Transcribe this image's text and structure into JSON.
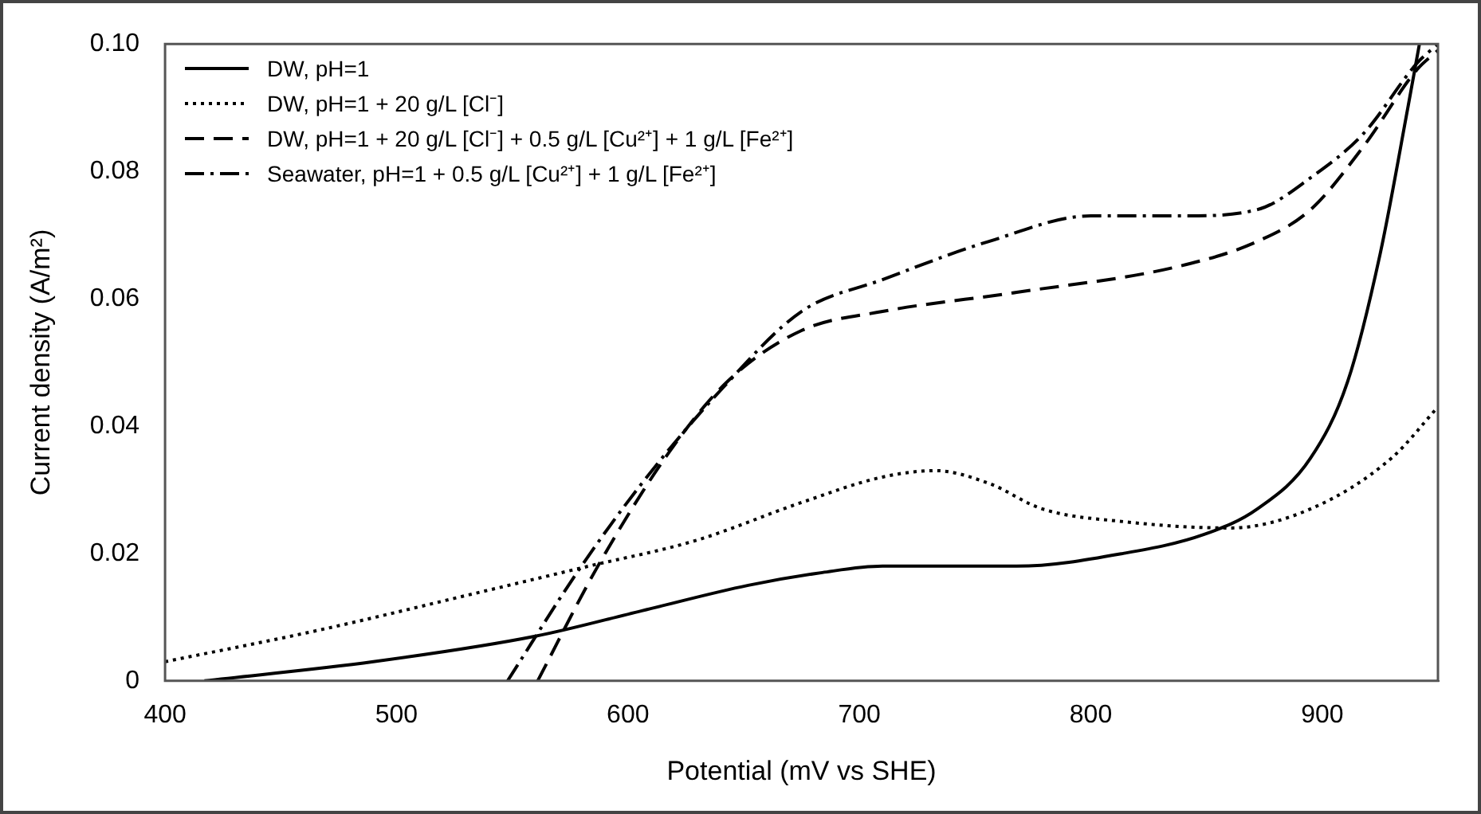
{
  "chart_data": {
    "type": "line",
    "xlabel": "Potential (mV vs SHE)",
    "ylabel": "Current density (A/m²)",
    "xlim": [
      400,
      950
    ],
    "xticks": [
      400,
      500,
      600,
      700,
      800,
      900
    ],
    "ylim": [
      0,
      0.1
    ],
    "yticks": [
      0,
      0.02,
      0.04,
      0.06,
      0.08,
      {
        "value": 0.1,
        "label": "0.10"
      }
    ],
    "grid": false,
    "legend": "top left",
    "marker": "none",
    "series": [
      {
        "name": "DW, pH=1",
        "color": "#000000",
        "line_style": "solid",
        "x": [
          417,
          490,
          560,
          606,
          652,
          684,
          710,
          768,
          814,
          849,
          872,
          895,
          911,
          925,
          937,
          942
        ],
        "values": [
          0,
          0.003,
          0.007,
          0.011,
          0.015,
          0.017,
          0.018,
          0.018,
          0.02,
          0.023,
          0.027,
          0.035,
          0.047,
          0.067,
          0.09,
          0.1
        ]
      },
      {
        "name": "DW, pH=1 + 20 g/L [Cl⁻]",
        "color": "#000000",
        "line_style": "dotted",
        "x": [
          400,
          467,
          537,
          583,
          629,
          675,
          710,
          733,
          756,
          779,
          814,
          860,
          895,
          930,
          950
        ],
        "values": [
          0.003,
          0.008,
          0.014,
          0.018,
          0.022,
          0.028,
          0.032,
          0.033,
          0.031,
          0.027,
          0.025,
          0.024,
          0.027,
          0.035,
          0.043
        ]
      },
      {
        "name": "DW, pH=1 + 20 g/L [Cl⁻] + 0.5 g/L [Cu²⁺] + 1 g/L [Fe²⁺]",
        "color": "#000000",
        "line_style": "dashed",
        "x": [
          561,
          587,
          618,
          643,
          675,
          710,
          768,
          837,
          872,
          895,
          918,
          941,
          950
        ],
        "values": [
          0,
          0.018,
          0.036,
          0.047,
          0.055,
          0.058,
          0.061,
          0.065,
          0.069,
          0.074,
          0.084,
          0.096,
          0.099
        ]
      },
      {
        "name": "Seawater, pH=1 + 0.5 g/L [Cu²⁺] + 1 g/L [Fe²⁺]",
        "color": "#000000",
        "line_style": "dashdot",
        "x": [
          548,
          578,
          606,
          641,
          675,
          710,
          756,
          800,
          840,
          872,
          895,
          918,
          941,
          950
        ],
        "values": [
          0,
          0.017,
          0.031,
          0.046,
          0.058,
          0.063,
          0.069,
          0.073,
          0.073,
          0.074,
          0.079,
          0.086,
          0.097,
          0.1
        ]
      }
    ]
  }
}
